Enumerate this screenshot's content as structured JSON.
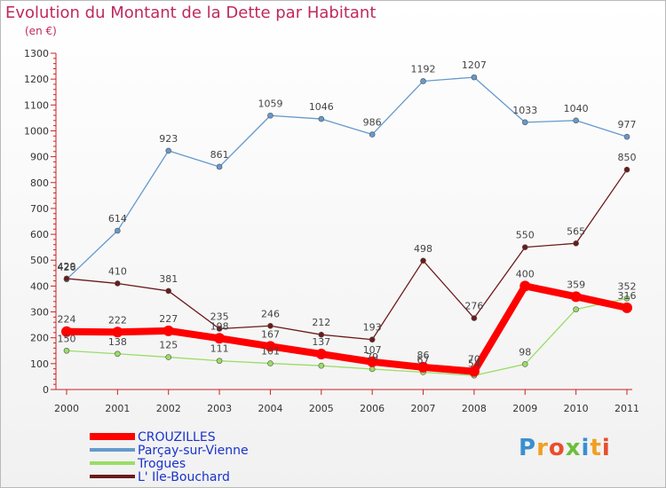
{
  "header": {
    "title": "Evolution du Montant de la Dette par Habitant",
    "unit": "(en €)"
  },
  "logo": {
    "text": "Proxiti"
  },
  "chart_data": {
    "type": "line",
    "title": "Evolution du Montant de la Dette par Habitant",
    "ylabel": "(en €)",
    "xlabel": "",
    "ylim": [
      0,
      1300
    ],
    "yticks": [
      0,
      100,
      200,
      300,
      400,
      500,
      600,
      700,
      800,
      900,
      1000,
      1100,
      1200,
      1300
    ],
    "x": [
      "2000",
      "2001",
      "2002",
      "2003",
      "2004",
      "2005",
      "2006",
      "2007",
      "2008",
      "2009",
      "2010",
      "2011"
    ],
    "grid": false,
    "legend_position": "bottom-left",
    "series": [
      {
        "name": "CROUZILLES",
        "color": "#ff0000",
        "style": "thick",
        "values": [
          224,
          222,
          227,
          198,
          167,
          137,
          107,
          86,
          70,
          400,
          359,
          316
        ],
        "labels": [
          "224",
          "222",
          "227",
          "198",
          "167",
          "137",
          "107",
          "86",
          "70",
          "400",
          "359",
          "316"
        ]
      },
      {
        "name": "Parçay-sur-Vienne",
        "color": "#6699cc",
        "style": "thin",
        "values": [
          426,
          614,
          923,
          861,
          1059,
          1046,
          986,
          1192,
          1207,
          1033,
          1040,
          977
        ],
        "labels": [
          "426",
          "614",
          "923",
          "861",
          "1059",
          "1046",
          "986",
          "1192",
          "1207",
          "1033",
          "1040",
          "977"
        ]
      },
      {
        "name": "Trogues",
        "color": "#99dd66",
        "style": "thin",
        "values": [
          150,
          138,
          125,
          111,
          101,
          92,
          79,
          67,
          54,
          98,
          310,
          352
        ],
        "labels": [
          "150",
          "138",
          "125",
          "111",
          "101",
          "",
          "79",
          "67",
          "54",
          "98",
          "",
          "352"
        ]
      },
      {
        "name": "L' Ile-Bouchard",
        "color": "#6b1a1a",
        "style": "thin",
        "values": [
          429,
          410,
          381,
          235,
          246,
          212,
          193,
          498,
          276,
          550,
          565,
          850
        ],
        "labels": [
          "429",
          "410",
          "381",
          "235",
          "246",
          "212",
          "193",
          "498",
          "276",
          "550",
          "565",
          "850"
        ]
      }
    ]
  }
}
